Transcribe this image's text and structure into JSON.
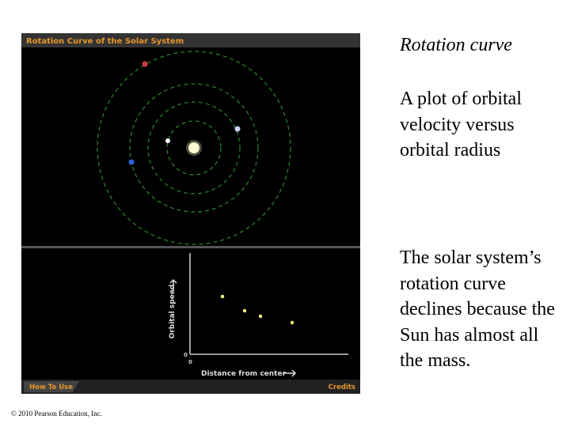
{
  "panel": {
    "title": "Rotation Curve of the Solar System",
    "y_axis_label": "Orbital speed",
    "x_axis_label": "Distance from center",
    "y_origin": "0",
    "x_origin": "0",
    "left_button": "How To Use",
    "right_button": "Credits"
  },
  "heading": "Rotation curve",
  "definition": "A plot of orbital velocity versus orbital radius",
  "explanation": "The solar system’s rotation curve declines because the Sun has almost all the mass.",
  "footer": "© 2010 Pearson Education, Inc."
}
